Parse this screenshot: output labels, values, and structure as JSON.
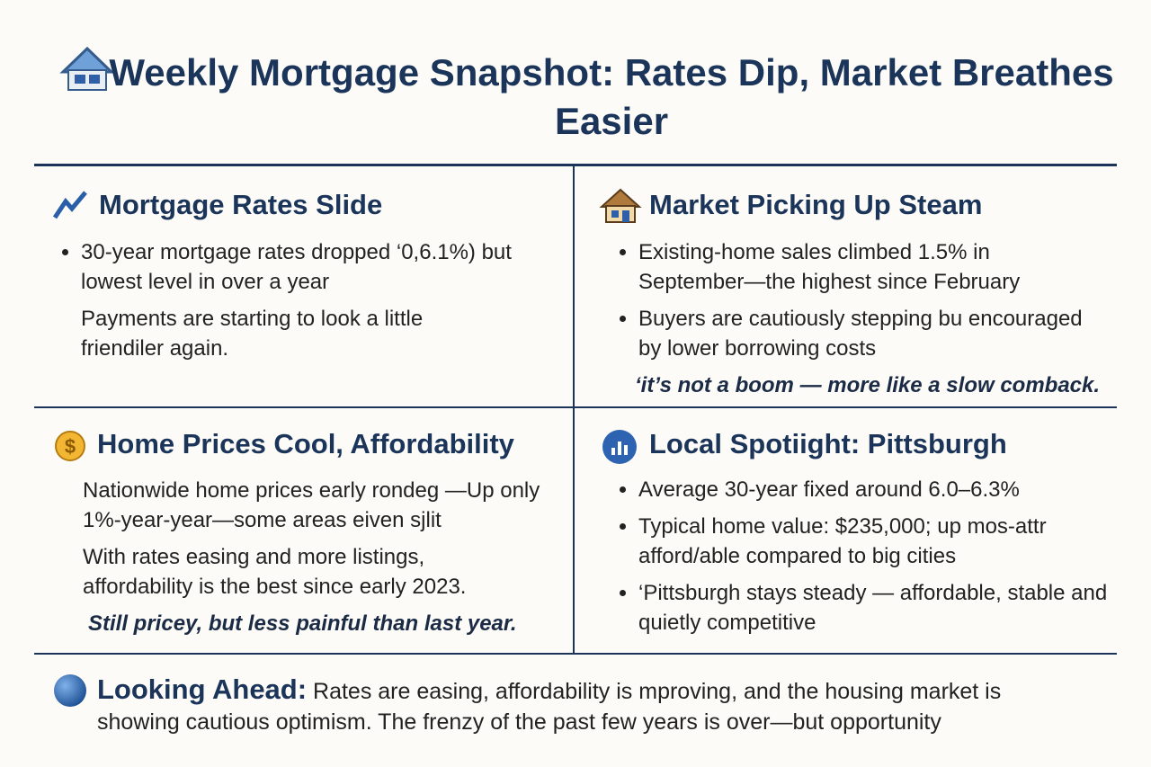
{
  "header": {
    "title": "Weekly Mortgage Snapshot: Rates Dip, Market Breathes Easier"
  },
  "sections": [
    {
      "heading": "Mortgage Rates Slide",
      "bullets": [
        "30-year mortgage rates dropped ‘0,6.1%) but lowest level in over a year"
      ],
      "paragraphs": [
        "Payments are starting to look a little friendiler again."
      ]
    },
    {
      "heading": "Market Picking Up Steam",
      "bullets": [
        "Existing-home sales climbed 1.5% in September—the highest since February",
        "Buyers are cautiously stepping bu encouraged by lower borrowing costs"
      ],
      "quote": "‘it’s not a boom — more like a slow comback."
    },
    {
      "heading": "Home Prices Cool, Affordability",
      "paragraphs": [
        "Nationwide home prices early rondeg —Up only 1%-year-year—some areas eiven sjlit",
        "With rates easing and more listings, affordability is the best since early 2023."
      ],
      "quote": "Still pricey, but less painful than last year."
    },
    {
      "heading": "Local Spotiight: Pittsburgh",
      "bullets": [
        "Average 30-year fixed around 6.0–6.3%",
        "Typical home value: $235,000; up mos-attr afford/able compared to big cities",
        "‘Pittsburgh stays steady — affordable, stable and quietly competitive"
      ]
    }
  ],
  "footer": {
    "label": "Looking Ahead:",
    "text": "Rates are easing, affordability is mproving, and the housing market is showing cautious optimism. The frenzy of the past few years is over—but opportunity"
  }
}
